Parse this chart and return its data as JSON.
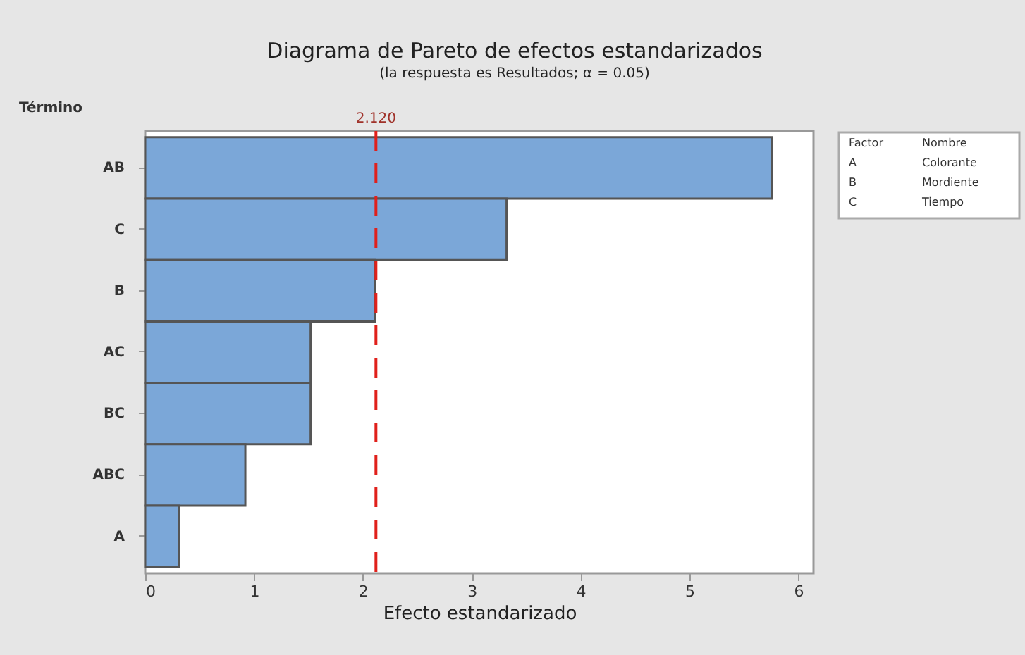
{
  "chart_data": {
    "type": "bar",
    "orientation": "horizontal",
    "title": "Diagrama de Pareto de efectos estandarizados",
    "subtitle": "(la respuesta es Resultados; α  = 0.05)",
    "xlabel": "Efecto estandarizado",
    "ylabel": "Término",
    "categories": [
      "AB",
      "C",
      "B",
      "AC",
      "BC",
      "ABC",
      "A"
    ],
    "values": [
      5.76,
      3.32,
      2.11,
      1.52,
      1.52,
      0.92,
      0.31
    ],
    "color": "#7ba7d8",
    "xlim": [
      0,
      6.14
    ],
    "xticks": [
      0,
      1,
      2,
      3,
      4,
      5,
      6
    ],
    "grid": false,
    "ref_lines": [
      {
        "axis": "x",
        "value": 2.12,
        "label": "2.120",
        "color": "#e0201b",
        "line_style": "dashed"
      }
    ],
    "annotations": [
      "Factor",
      "Nombre",
      "A",
      "Colorante",
      "B",
      "Mordiente",
      "C",
      "Tiempo"
    ]
  }
}
